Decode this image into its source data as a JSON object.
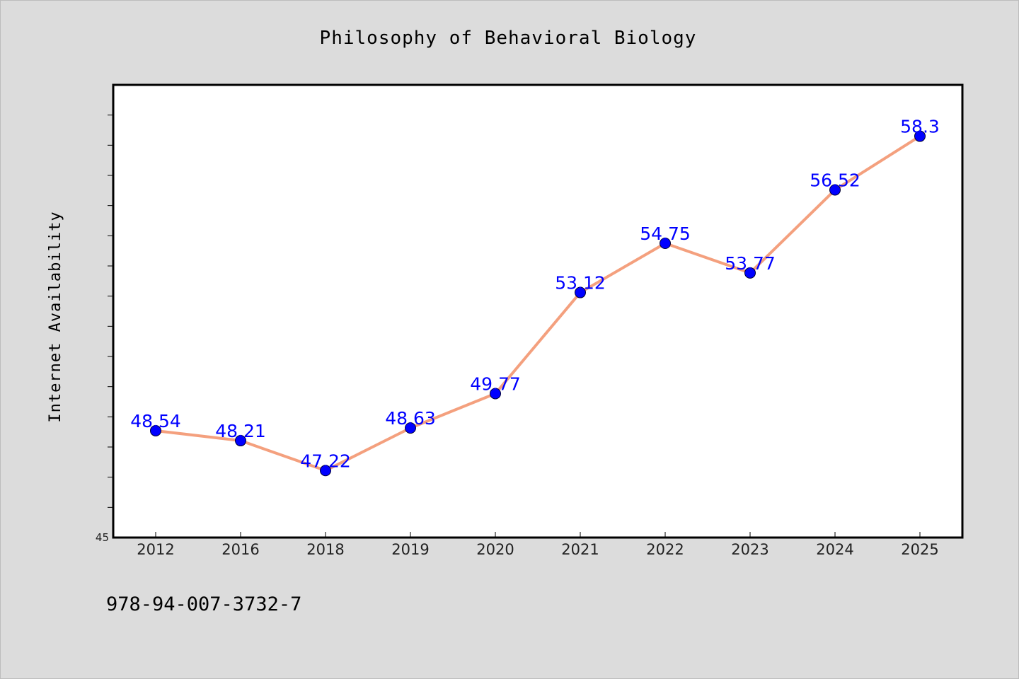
{
  "colors": {
    "background": "#dcdcdc",
    "plot_background": "#ffffff",
    "line": "#f4a07e",
    "marker": "#0000ff",
    "label": "#0000ff",
    "axes": "#000000"
  },
  "footer": {
    "isbn": "978-94-007-3732-7"
  },
  "chart_data": {
    "type": "line",
    "title": "Philosophy of Behavioral Biology",
    "xlabel": "",
    "ylabel": "Internet Availability",
    "categories": [
      "2012",
      "2016",
      "2018",
      "2019",
      "2020",
      "2021",
      "2022",
      "2023",
      "2024",
      "2025"
    ],
    "series": [
      {
        "values": [
          48.54,
          48.21,
          47.22,
          48.63,
          49.77,
          53.12,
          54.75,
          53.77,
          56.52,
          58.3
        ],
        "labels": [
          "48.54",
          "48.21",
          "47.22",
          "48.63",
          "49.77",
          "53.12",
          "54.75",
          "53.77",
          "56.52",
          "58.3"
        ]
      }
    ],
    "ylim": [
      45,
      60
    ],
    "y_tick_labels": [
      {
        "value": 45,
        "label": "45"
      }
    ],
    "y_minor_step": 1,
    "grid": false,
    "legend": "none"
  }
}
